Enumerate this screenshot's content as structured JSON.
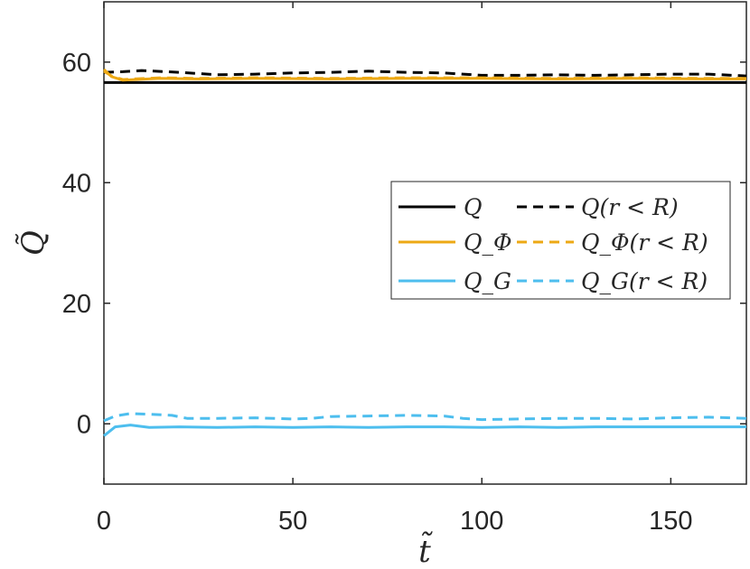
{
  "chart_data": {
    "type": "line",
    "title": "",
    "xlabel": "t̃",
    "ylabel": "Q̃",
    "xlim": [
      0,
      170
    ],
    "ylim": [
      -10,
      70
    ],
    "xticks": [
      0,
      50,
      100,
      150
    ],
    "yticks": [
      0,
      20,
      40,
      60
    ],
    "xtick_labels": [
      "0",
      "50",
      "100",
      "150"
    ],
    "ytick_labels": [
      "0",
      "20",
      "40",
      "60"
    ],
    "grid": false,
    "legend_position": "right",
    "series": [
      {
        "name": "Q",
        "color": "#000000",
        "dash": "solid",
        "x": [
          0,
          170
        ],
        "y": [
          56.6,
          56.6
        ]
      },
      {
        "name": "Q(r < R)",
        "color": "#000000",
        "dash": "dashed",
        "x": [
          0,
          5,
          10,
          20,
          30,
          40,
          50,
          60,
          70,
          80,
          90,
          100,
          110,
          120,
          130,
          140,
          150,
          160,
          170
        ],
        "y": [
          58.3,
          58.4,
          58.6,
          58.3,
          57.9,
          58.0,
          58.2,
          58.3,
          58.5,
          58.3,
          58.2,
          57.8,
          57.8,
          57.9,
          57.8,
          57.9,
          58.0,
          58.0,
          57.7
        ]
      },
      {
        "name": "Q_Φ",
        "color": "#EDA915",
        "dash": "solid",
        "x": [
          0,
          2,
          5,
          8,
          15,
          25,
          40,
          60,
          80,
          100,
          120,
          140,
          160,
          170
        ],
        "y": [
          58.8,
          57.6,
          57.0,
          57.1,
          57.3,
          57.2,
          57.3,
          57.2,
          57.3,
          57.3,
          57.2,
          57.3,
          57.2,
          57.2
        ]
      },
      {
        "name": "Q_Φ(r < R)",
        "color": "#EDA915",
        "dash": "dashed",
        "x": [
          0,
          2,
          5,
          8,
          15,
          25,
          40,
          60,
          80,
          100,
          120,
          140,
          160,
          170
        ],
        "y": [
          58.5,
          57.7,
          57.1,
          57.2,
          57.4,
          57.3,
          57.4,
          57.3,
          57.4,
          57.4,
          57.3,
          57.4,
          57.3,
          57.3
        ]
      },
      {
        "name": "Q_G",
        "color": "#4DBEEE",
        "dash": "solid",
        "x": [
          0,
          3,
          7,
          12,
          20,
          30,
          40,
          50,
          60,
          70,
          80,
          90,
          100,
          110,
          120,
          130,
          140,
          150,
          160,
          170
        ],
        "y": [
          -2.0,
          -0.5,
          -0.2,
          -0.6,
          -0.5,
          -0.6,
          -0.5,
          -0.6,
          -0.5,
          -0.6,
          -0.5,
          -0.5,
          -0.6,
          -0.5,
          -0.6,
          -0.5,
          -0.5,
          -0.5,
          -0.5,
          -0.5
        ]
      },
      {
        "name": "Q_G(r < R)",
        "color": "#4DBEEE",
        "dash": "dashed",
        "x": [
          0,
          3,
          7,
          12,
          18,
          22,
          30,
          40,
          50,
          55,
          60,
          70,
          80,
          90,
          95,
          100,
          110,
          120,
          130,
          140,
          150,
          160,
          170
        ],
        "y": [
          0.5,
          1.3,
          1.7,
          1.6,
          1.4,
          0.9,
          0.9,
          1.0,
          0.8,
          0.9,
          1.2,
          1.3,
          1.4,
          1.3,
          0.9,
          0.7,
          0.8,
          0.9,
          0.9,
          0.8,
          1.0,
          1.1,
          0.9
        ]
      }
    ]
  }
}
